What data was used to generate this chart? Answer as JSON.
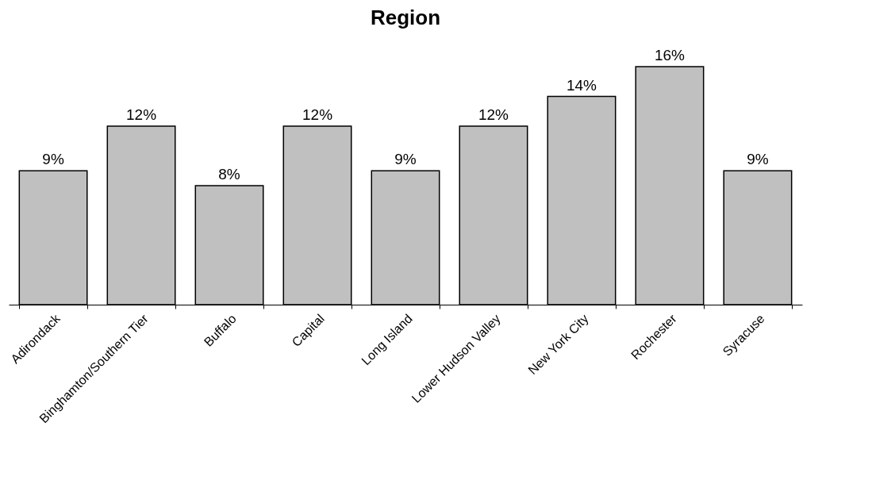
{
  "chart_data": {
    "type": "bar",
    "title": "Region",
    "categories": [
      "Adirondack",
      "Binghamton/Southern Tier",
      "Buffalo",
      "Capital",
      "Long Island",
      "Lower Hudson Valley",
      "New York City",
      "Rochester",
      "Syracuse"
    ],
    "values": [
      9,
      12,
      8,
      12,
      9,
      12,
      14,
      16,
      9
    ],
    "value_labels": [
      "9%",
      "12%",
      "8%",
      "12%",
      "9%",
      "12%",
      "14%",
      "16%",
      "9%"
    ],
    "color": "#c0c0c0",
    "grid": false
  }
}
